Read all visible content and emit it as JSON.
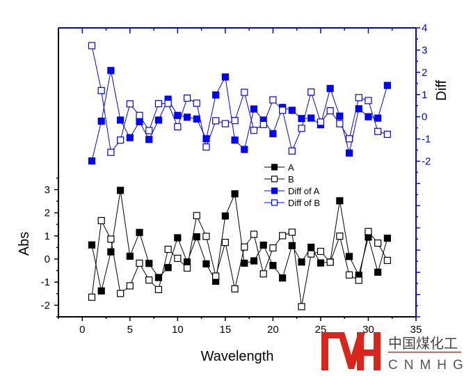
{
  "chart_data": {
    "type": "line",
    "xlabel": "Wavelength",
    "ylabel_left": "Abs",
    "ylabel_right": "Diff",
    "xlim": [
      -2.5,
      35
    ],
    "ylim_left": [
      -2.5,
      10
    ],
    "ylim_right": [
      -9,
      4
    ],
    "x_ticks": [
      0,
      5,
      10,
      15,
      20,
      25,
      30,
      35
    ],
    "y_left_ticks": [
      -2,
      -1,
      0,
      1,
      2,
      3
    ],
    "y_right_ticks": [
      -2,
      -1,
      0,
      1,
      2,
      3,
      4
    ],
    "legend_position": "center",
    "x": [
      1,
      2,
      3,
      4,
      5,
      6,
      7,
      8,
      9,
      10,
      11,
      12,
      13,
      14,
      15,
      16,
      17,
      18,
      19,
      20,
      21,
      22,
      23,
      24,
      25,
      26,
      27,
      28,
      29,
      30,
      31,
      32
    ],
    "series": [
      {
        "name": "A",
        "axis": "left",
        "marker": "filled-square",
        "color": "#000000",
        "values": [
          0.61,
          -1.38,
          0.31,
          2.97,
          0.12,
          1.15,
          -0.19,
          -0.8,
          -0.37,
          0.92,
          -0.13,
          0.96,
          -0.21,
          -0.96,
          1.86,
          2.82,
          -0.18,
          -0.08,
          0.6,
          -0.28,
          -0.82,
          0.58,
          -0.13,
          0.51,
          -0.17,
          -0.13,
          2.52,
          0.11,
          -0.7,
          0.95,
          -0.57,
          0.9
        ]
      },
      {
        "name": "B",
        "axis": "left",
        "marker": "open-square",
        "color": "#000000",
        "values": [
          -1.65,
          1.66,
          0.86,
          -1.49,
          -1.16,
          -0.18,
          -0.91,
          -1.32,
          0.42,
          0.03,
          -0.39,
          1.88,
          0.98,
          -0.74,
          0.72,
          -1.29,
          0.52,
          1.07,
          -0.64,
          0.48,
          1.01,
          1.16,
          -2.06,
          0.22,
          0.33,
          -0.14,
          0.99,
          -0.69,
          -0.92,
          1.19,
          0.69,
          -0.06
        ]
      },
      {
        "name": "Diff of A",
        "axis": "right",
        "marker": "filled-square",
        "color": "#0000ff",
        "values": [
          -1.99,
          -0.2,
          2.08,
          -0.15,
          -0.94,
          -0.22,
          -1.02,
          -0.15,
          0.79,
          0.06,
          -0.02,
          -0.1,
          -0.99,
          0.98,
          1.79,
          -1.05,
          -1.47,
          0.35,
          -0.15,
          -0.76,
          0.42,
          0.29,
          -0.08,
          -0.06,
          -0.36,
          1.27,
          0.03,
          -1.63,
          0.36,
          0.0,
          -0.06,
          1.41
        ]
      },
      {
        "name": "Diff of B",
        "axis": "right",
        "marker": "open-square",
        "color": "#0000ff",
        "values": [
          3.2,
          1.18,
          -1.6,
          -1.05,
          0.58,
          0.06,
          -0.62,
          0.59,
          0.6,
          -0.45,
          0.84,
          0.61,
          -1.36,
          -0.18,
          -0.31,
          -0.17,
          1.1,
          -0.61,
          -0.35,
          0.76,
          0.29,
          -1.54,
          -0.52,
          1.11,
          -0.24,
          0.27,
          -0.31,
          -0.99,
          0.86,
          0.73,
          -0.66,
          -0.79
        ]
      }
    ]
  },
  "watermark": {
    "brand_mark": "MH",
    "cn_text": "中国煤化工",
    "en_text": "CNMHG",
    "color": "#d9261c"
  }
}
